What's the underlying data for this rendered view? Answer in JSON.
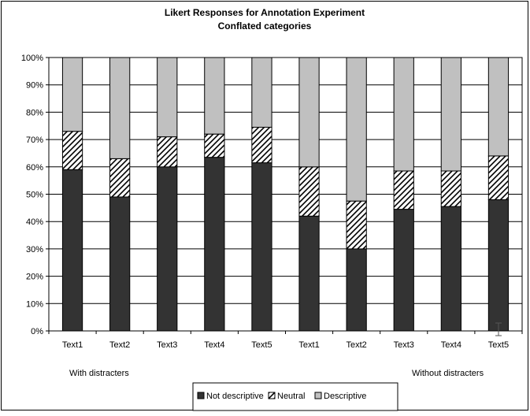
{
  "chart_data": {
    "type": "bar",
    "stacked": "percent",
    "title": "Likert Responses for Annotation Experiment",
    "subtitle": "Conflated categories",
    "xlabel": "",
    "ylabel": "",
    "ylim": [
      0,
      100
    ],
    "y_ticks": [
      "0%",
      "10%",
      "20%",
      "30%",
      "40%",
      "50%",
      "60%",
      "70%",
      "80%",
      "90%",
      "100%"
    ],
    "categories": [
      "Text1",
      "Text2",
      "Text3",
      "Text4",
      "Text5",
      "Text1",
      "Text2",
      "Text3",
      "Text4",
      "Text5"
    ],
    "groups": [
      {
        "label": "With distracters",
        "categories": [
          0,
          1,
          2,
          3,
          4
        ]
      },
      {
        "label": "Without distracters",
        "categories": [
          5,
          6,
          7,
          8,
          9
        ]
      }
    ],
    "series": [
      {
        "name": "Not descriptive",
        "color": "#333333",
        "pattern": "solid",
        "values": [
          59,
          49,
          60,
          63.5,
          61.5,
          42,
          30,
          44.5,
          45.5,
          48
        ]
      },
      {
        "name": "Neutral",
        "color": "#ffffff",
        "pattern": "diagonal-hatch",
        "values": [
          14,
          14,
          11,
          8.5,
          13,
          18,
          17.5,
          14,
          13,
          16
        ]
      },
      {
        "name": "Descriptive",
        "color": "#c0c0c0",
        "pattern": "solid",
        "values": [
          27,
          37,
          29,
          28,
          25.5,
          40,
          52.5,
          41.5,
          41.5,
          36
        ]
      }
    ],
    "grid": true,
    "legend_position": "bottom"
  }
}
